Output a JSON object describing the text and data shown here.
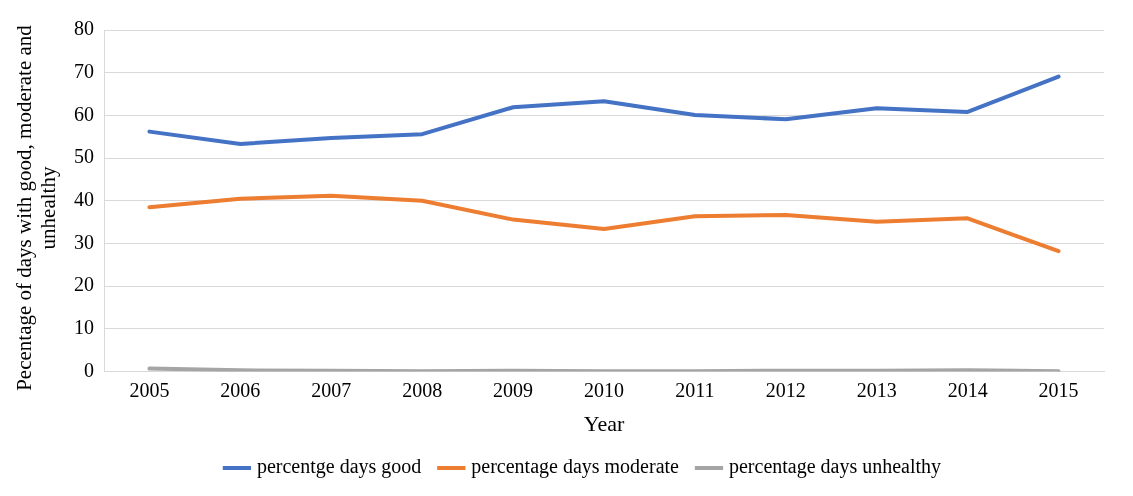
{
  "chart_data": {
    "type": "line",
    "xlabel": "Year",
    "ylabel": "Pecentage of days  with good, moderate and unhealthy",
    "categories": [
      "2005",
      "2006",
      "2007",
      "2008",
      "2009",
      "2010",
      "2011",
      "2012",
      "2013",
      "2014",
      "2015"
    ],
    "series": [
      {
        "name": "percentge days good",
        "color": "#4472c4",
        "values": [
          56.2,
          53.3,
          54.7,
          55.6,
          61.9,
          63.3,
          60.1,
          59.1,
          61.7,
          60.8,
          69.1
        ]
      },
      {
        "name": "percentage days moderate",
        "color": "#ed7d31",
        "values": [
          38.5,
          40.5,
          41.2,
          40.0,
          35.6,
          33.4,
          36.4,
          36.7,
          35.1,
          35.9,
          28.2
        ]
      },
      {
        "name": "percentage days unhealthy",
        "color": "#a5a5a5",
        "values": [
          0.7,
          0.3,
          0.2,
          0.1,
          0.2,
          0.1,
          0.1,
          0.2,
          0.2,
          0.3,
          0.1
        ]
      }
    ],
    "ylim": [
      0,
      80
    ],
    "yticks": [
      0,
      10,
      20,
      30,
      40,
      50,
      60,
      70,
      80
    ],
    "grid": "y",
    "legend": "bottom",
    "marker": "none",
    "line_style": "solid"
  }
}
